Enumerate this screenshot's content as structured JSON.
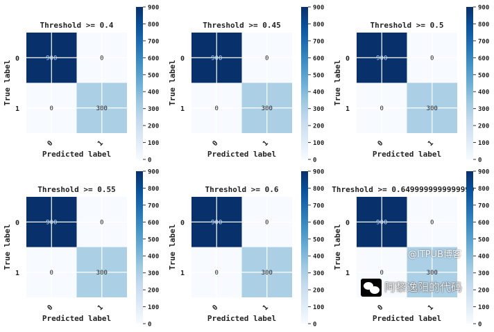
{
  "chart_data": {
    "type": "heatmap",
    "colormap": "Blues",
    "xlabel": "Predicted label",
    "ylabel": "True label",
    "row_labels": [
      "0",
      "1"
    ],
    "col_labels": [
      "0",
      "1"
    ],
    "colorbar": {
      "range": [
        0,
        900
      ],
      "ticks": [
        0,
        100,
        200,
        300,
        400,
        500,
        600,
        700,
        800,
        900
      ]
    },
    "panels": [
      {
        "title": "Threshold >= 0.4",
        "matrix": [
          [
            900,
            0
          ],
          [
            0,
            300
          ]
        ]
      },
      {
        "title": "Threshold >= 0.45",
        "matrix": [
          [
            900,
            0
          ],
          [
            0,
            300
          ]
        ]
      },
      {
        "title": "Threshold >= 0.5",
        "matrix": [
          [
            900,
            0
          ],
          [
            0,
            300
          ]
        ]
      },
      {
        "title": "Threshold >= 0.55",
        "matrix": [
          [
            900,
            0
          ],
          [
            0,
            300
          ]
        ]
      },
      {
        "title": "Threshold >= 0.6",
        "matrix": [
          [
            900,
            0
          ],
          [
            0,
            300
          ]
        ]
      },
      {
        "title": "Threshold >= 0.6499999999999999",
        "matrix": [
          [
            900,
            0
          ],
          [
            0,
            300
          ]
        ]
      }
    ]
  },
  "watermark": {
    "name": "阿黎逸阳的代码",
    "source": "@ITPUB博客"
  },
  "colors": {
    "low": "#f7fbff",
    "high": "#08306b"
  }
}
